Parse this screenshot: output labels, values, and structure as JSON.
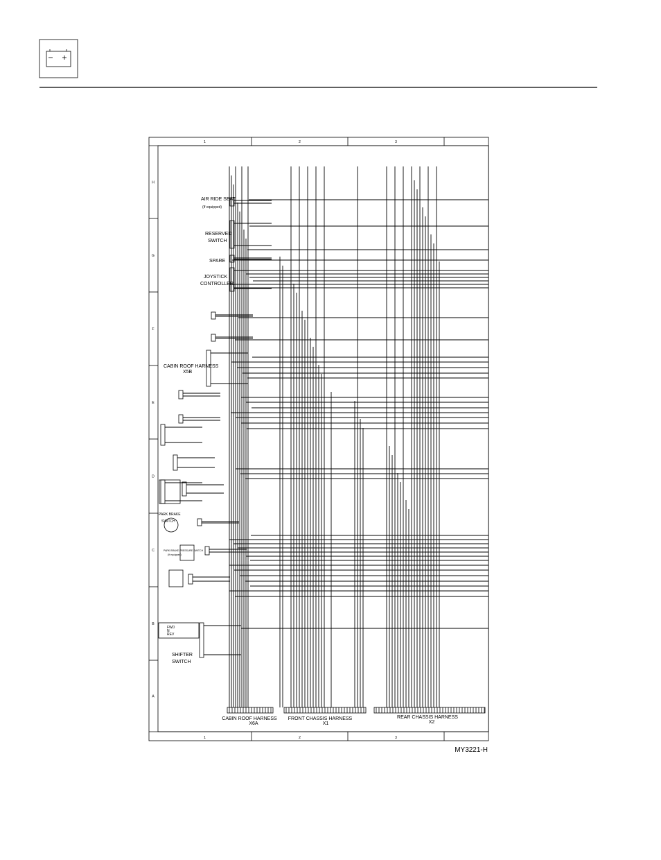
{
  "diagram": {
    "column_labels": [
      "1",
      "2",
      "3"
    ],
    "row_labels": [
      "H",
      "G",
      "F",
      "E",
      "D",
      "C",
      "B",
      "A"
    ],
    "components": [
      {
        "label": "AIR RIDE SEAT",
        "note": "(If equipped)"
      },
      {
        "label": "RESERVED",
        "note": "SWITCH"
      },
      {
        "label": "SPARE"
      },
      {
        "label": "JOYSTICK",
        "note": "CONTROLLER"
      },
      {
        "label": "CABIN ROOF HARNESS",
        "note": "X5B"
      },
      {
        "label": "PARK BRAKE",
        "note": "SWITCH"
      },
      {
        "label": "PARK BRAKE PRESSURE SWITCH",
        "note": "(If equipped)"
      },
      {
        "label": "SHIFTER",
        "note": "SWITCH"
      }
    ],
    "shifter_positions": [
      "FWD",
      "N",
      "REV"
    ],
    "harnesses": [
      {
        "name": "CABIN ROOF HARNESS",
        "connector": "X6A"
      },
      {
        "name": "FRONT CHASSIS HARNESS",
        "connector": "X1"
      },
      {
        "name": "REAR CHASSIS HARNESS",
        "connector": "X2"
      }
    ]
  },
  "figure_id": "MY3221-H"
}
